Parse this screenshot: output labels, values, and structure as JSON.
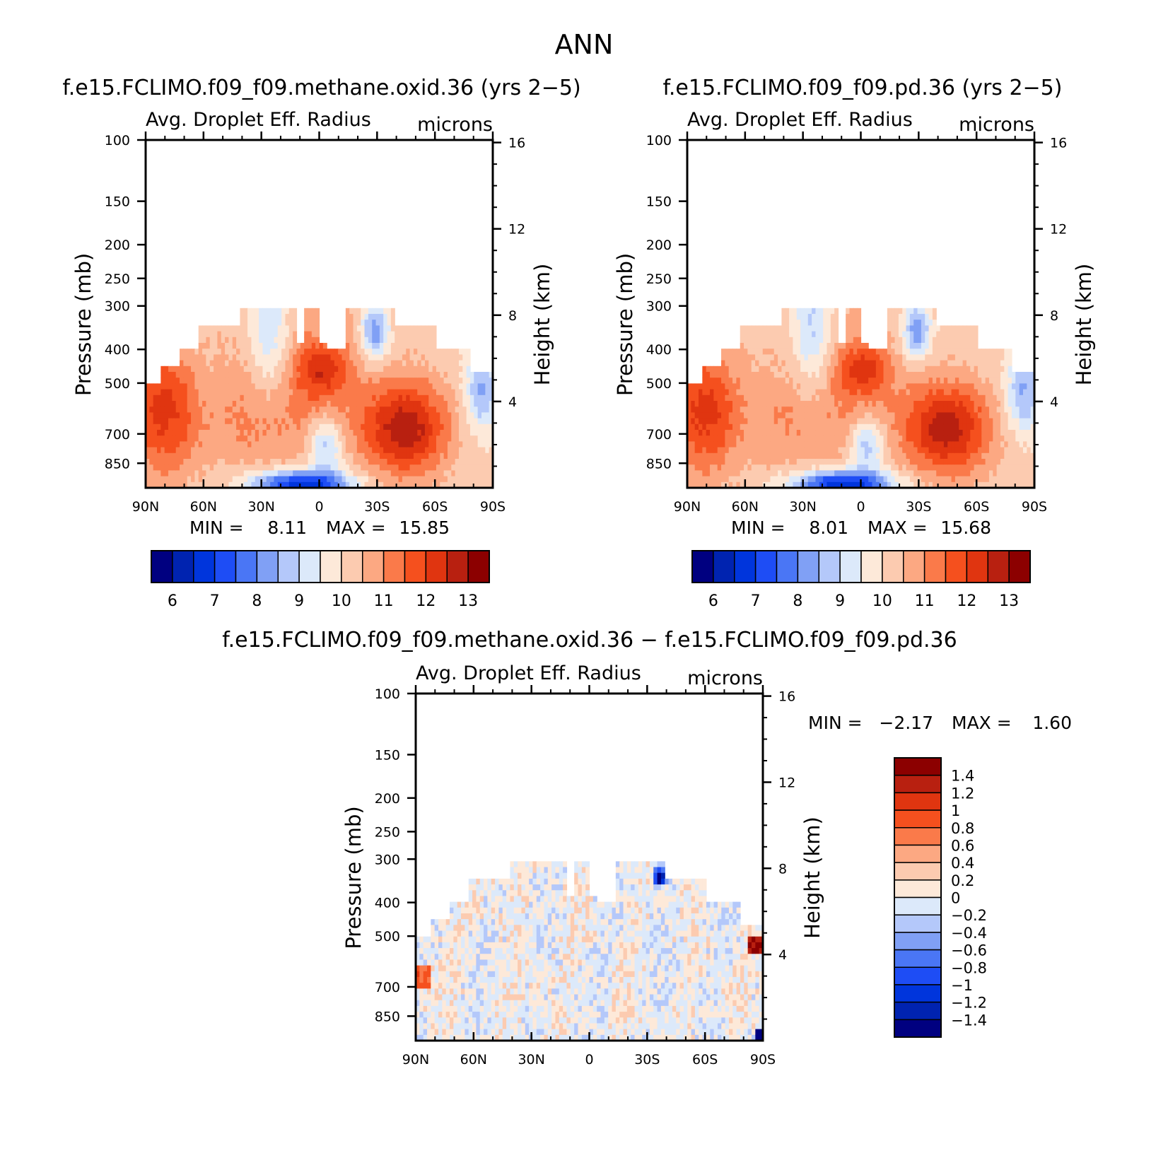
{
  "figure": {
    "title": "ANN"
  },
  "palette": {
    "abs": [
      "#000080",
      "#0023b0",
      "#0035dc",
      "#1e4df5",
      "#4a76f5",
      "#80a0f5",
      "#b4c8fa",
      "#dce9fa",
      "#fde9d9",
      "#fccbb0",
      "#fca882",
      "#fa7a4a",
      "#f5501e",
      "#e03510",
      "#b82010",
      "#8c0000"
    ],
    "diff": [
      "#000080",
      "#0023b0",
      "#0035dc",
      "#1e4df5",
      "#4a76f5",
      "#80a0f5",
      "#b4c8fa",
      "#dce9fa",
      "#fde9d9",
      "#fccbb0",
      "#fca882",
      "#fa7a4a",
      "#f5501e",
      "#e03510",
      "#b82010",
      "#8c0000"
    ]
  },
  "chart_data": [
    {
      "type": "heatmap",
      "title": "f.e15.FCLIMO.f09_f09.methane.oxid.36 (yrs 2−5)",
      "variable": "Avg. Droplet Eff. Radius",
      "units": "microns",
      "ylabel": "Pressure (mb)",
      "y2label": "Height (km)",
      "xticks": [
        "90N",
        "60N",
        "30N",
        "0",
        "30S",
        "60S",
        "90S"
      ],
      "yticks": [
        100,
        150,
        200,
        250,
        300,
        400,
        500,
        700,
        850
      ],
      "y2ticks": [
        4,
        8,
        12,
        16
      ],
      "ylim": [
        100,
        1000
      ],
      "log_y": true,
      "min_label": "MIN =",
      "min_value": "8.11",
      "max_label": "MAX =",
      "max_value": "15.85",
      "colorbar_labels": [
        "6",
        "7",
        "8",
        "9",
        "10",
        "11",
        "12",
        "13"
      ],
      "colorbar_levels": [
        5.5,
        6,
        6.5,
        7,
        7.5,
        8,
        8.5,
        9,
        9.5,
        10,
        10.5,
        11,
        11.5,
        12,
        12.5,
        13,
        13.5
      ]
    },
    {
      "type": "heatmap",
      "title": "f.e15.FCLIMO.f09_f09.pd.36 (yrs 2−5)",
      "variable": "Avg. Droplet Eff. Radius",
      "units": "microns",
      "ylabel": "Pressure (mb)",
      "y2label": "Height (km)",
      "xticks": [
        "90N",
        "60N",
        "30N",
        "0",
        "30S",
        "60S",
        "90S"
      ],
      "yticks": [
        100,
        150,
        200,
        250,
        300,
        400,
        500,
        700,
        850
      ],
      "y2ticks": [
        4,
        8,
        12,
        16
      ],
      "ylim": [
        100,
        1000
      ],
      "log_y": true,
      "min_label": "MIN =",
      "min_value": "8.01",
      "max_label": "MAX =",
      "max_value": "15.68",
      "colorbar_labels": [
        "6",
        "7",
        "8",
        "9",
        "10",
        "11",
        "12",
        "13"
      ],
      "colorbar_levels": [
        5.5,
        6,
        6.5,
        7,
        7.5,
        8,
        8.5,
        9,
        9.5,
        10,
        10.5,
        11,
        11.5,
        12,
        12.5,
        13,
        13.5
      ]
    },
    {
      "type": "heatmap",
      "title": "f.e15.FCLIMO.f09_f09.methane.oxid.36 − f.e15.FCLIMO.f09_f09.pd.36",
      "variable": "Avg. Droplet Eff. Radius",
      "units": "microns",
      "ylabel": "Pressure (mb)",
      "y2label": "Height (km)",
      "xticks": [
        "90N",
        "60N",
        "30N",
        "0",
        "30S",
        "60S",
        "90S"
      ],
      "yticks": [
        100,
        150,
        200,
        250,
        300,
        400,
        500,
        700,
        850
      ],
      "y2ticks": [
        4,
        8,
        12,
        16
      ],
      "ylim": [
        100,
        1000
      ],
      "log_y": true,
      "min_label": "MIN =",
      "min_value": "−2.17",
      "max_label": "MAX =",
      "max_value": "1.60",
      "colorbar_labels": [
        "1.4",
        "1.2",
        "1",
        "0.8",
        "0.6",
        "0.4",
        "0.2",
        "0",
        "−0.2",
        "−0.4",
        "−0.6",
        "−0.8",
        "−1",
        "−1.2",
        "−1.4"
      ]
    }
  ]
}
